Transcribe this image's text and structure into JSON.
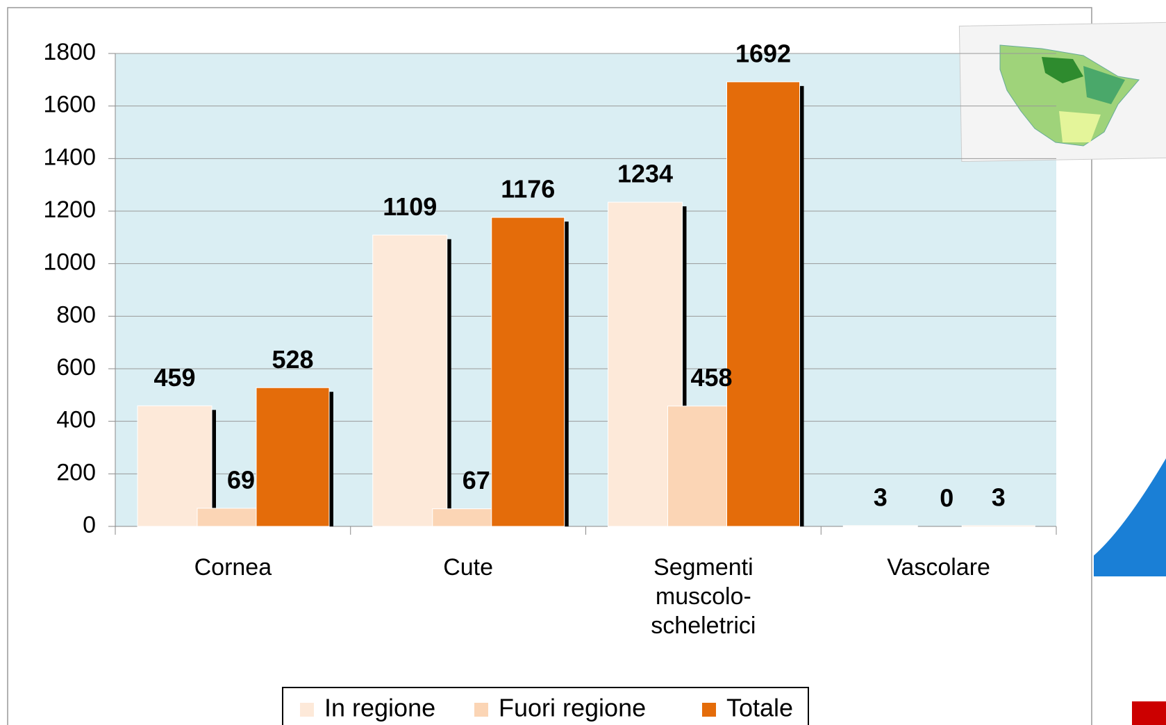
{
  "chart_data": {
    "type": "bar",
    "categories": [
      "Cornea",
      "Cute",
      "Segmenti muscolo-scheletrici",
      "Vascolare"
    ],
    "series": [
      {
        "name": "In regione",
        "color": "#fde9d9",
        "values": [
          459,
          1109,
          1234,
          3
        ]
      },
      {
        "name": "Fuori regione",
        "color": "#fbd5b5",
        "values": [
          69,
          67,
          458,
          0
        ]
      },
      {
        "name": "Totale",
        "color": "#e46c0a",
        "values": [
          528,
          1176,
          1692,
          3
        ]
      }
    ],
    "ylim": [
      0,
      1800
    ],
    "yticks": [
      0,
      200,
      400,
      600,
      800,
      1000,
      1200,
      1400,
      1600,
      1800
    ],
    "grid": true,
    "legend": "bottom"
  }
}
